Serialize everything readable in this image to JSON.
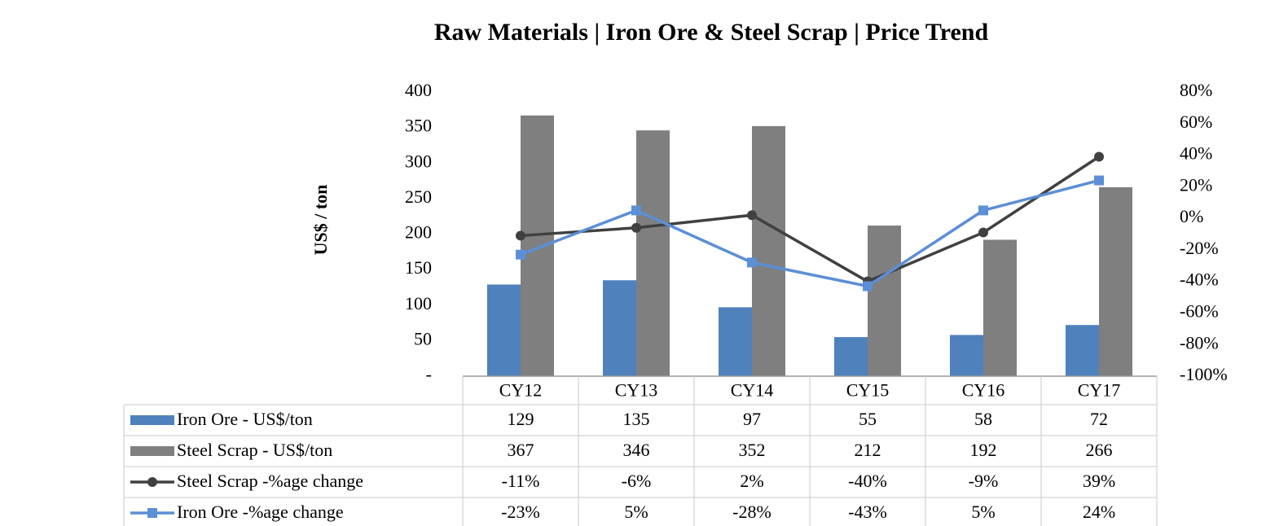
{
  "chart_data": {
    "type": "bar",
    "title": "Raw Materials | Iron Ore & Steel Scrap | Price Trend",
    "y_label": "US$ / ton",
    "categories": [
      "CY12",
      "CY13",
      "CY14",
      "CY15",
      "CY16",
      "CY17"
    ],
    "series": [
      {
        "name": "Iron Ore - US$/ton",
        "type": "bar",
        "color": "#4f81bd",
        "values": [
          129,
          135,
          97,
          55,
          58,
          72
        ]
      },
      {
        "name": "Steel Scrap - US$/ton",
        "type": "bar",
        "color": "#7f7f7f",
        "values": [
          367,
          346,
          352,
          212,
          192,
          266
        ]
      },
      {
        "name": "Steel Scrap -%age change",
        "type": "line",
        "axis": "y2",
        "marker": "circle",
        "color": "#404040",
        "values": [
          -11,
          -6,
          2,
          -40,
          -9,
          39
        ],
        "value_labels": [
          "-11%",
          "-6%",
          "2%",
          "-40%",
          "-9%",
          "39%"
        ]
      },
      {
        "name": "Iron Ore -%age change",
        "type": "line",
        "axis": "y2",
        "marker": "square",
        "color": "#5b8fd6",
        "values": [
          -23,
          5,
          -28,
          -43,
          5,
          24
        ],
        "value_labels": [
          "-23%",
          "5%",
          "-28%",
          "-43%",
          "5%",
          "24%"
        ]
      }
    ],
    "ylim": [
      0,
      400
    ],
    "yticks": [
      {
        "value": 0,
        "label": "-"
      },
      50,
      100,
      150,
      200,
      250,
      300,
      350,
      400
    ],
    "y2lim": [
      -100,
      80
    ],
    "y2ticks": [
      {
        "value": -100,
        "label": "-100%"
      },
      {
        "value": -80,
        "label": "-80%"
      },
      {
        "value": -60,
        "label": "-60%"
      },
      {
        "value": -40,
        "label": "-40%"
      },
      {
        "value": -20,
        "label": "-20%"
      },
      {
        "value": 0,
        "label": "0%"
      },
      {
        "value": 20,
        "label": "20%"
      },
      {
        "value": 40,
        "label": "40%"
      },
      {
        "value": 60,
        "label": "60%"
      },
      {
        "value": 80,
        "label": "80%"
      }
    ]
  }
}
